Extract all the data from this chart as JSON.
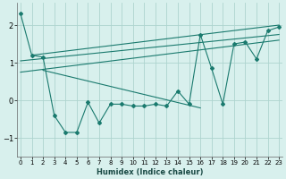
{
  "xlabel": "Humidex (Indice chaleur)",
  "bg_color": "#d8f0ed",
  "grid_color": "#aed4cf",
  "line_color": "#1a7a6e",
  "x_data": [
    0,
    1,
    2,
    3,
    4,
    5,
    6,
    7,
    8,
    9,
    10,
    11,
    12,
    13,
    14,
    15,
    16,
    17,
    18,
    19,
    20,
    21,
    22,
    23
  ],
  "y_main": [
    2.3,
    1.2,
    1.15,
    -0.4,
    -0.85,
    -0.85,
    -0.05,
    -0.6,
    -0.1,
    -0.1,
    -0.15,
    -0.15,
    -0.1,
    -0.15,
    0.25,
    -0.1,
    1.75,
    0.85,
    -0.1,
    1.5,
    1.55,
    1.1,
    1.85,
    1.95
  ],
  "lines": [
    {
      "x": [
        0,
        23
      ],
      "y": [
        0.75,
        1.6
      ]
    },
    {
      "x": [
        0,
        23
      ],
      "y": [
        1.05,
        1.75
      ]
    },
    {
      "x": [
        1,
        23
      ],
      "y": [
        1.2,
        2.0
      ]
    },
    {
      "x": [
        2,
        16
      ],
      "y": [
        0.8,
        -0.2
      ]
    }
  ],
  "xlim": [
    0,
    23
  ],
  "ylim": [
    -1.5,
    2.6
  ],
  "yticks": [
    -1,
    0,
    1,
    2
  ],
  "xticks": [
    0,
    1,
    2,
    3,
    4,
    5,
    6,
    7,
    8,
    9,
    10,
    11,
    12,
    13,
    14,
    15,
    16,
    17,
    18,
    19,
    20,
    21,
    22,
    23
  ]
}
